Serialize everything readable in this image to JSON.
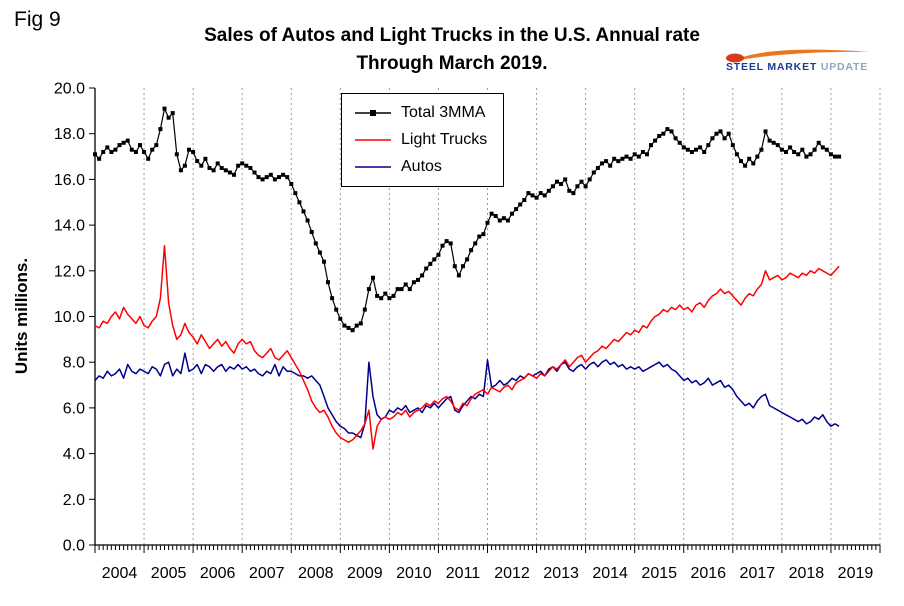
{
  "figure_label": "Fig 9",
  "logo": {
    "steel": "STEEL",
    "market": "MARKET",
    "update": "UPDATE",
    "swoosh_color": "#e87722",
    "swoosh_head_color": "#d63b1a",
    "steel_color": "#1b3e91",
    "market_color": "#1b3e91",
    "update_color": "#94a3c0"
  },
  "chart_data": {
    "type": "line",
    "title": "Sales of Autos and Light Trucks in the U.S. Annual rate",
    "subtitle": "Through March 2019.",
    "xlabel": "",
    "ylabel": "Units millions.",
    "ylim": [
      0,
      20
    ],
    "yticks": [
      0,
      2,
      4,
      6,
      8,
      10,
      12,
      14,
      16,
      18,
      20
    ],
    "x_start": "2004-01",
    "x_end": "2019-03",
    "x_frequency": "monthly",
    "year_labels": [
      "2004",
      "2005",
      "2006",
      "2007",
      "2008",
      "2009",
      "2010",
      "2011",
      "2012",
      "2013",
      "2014",
      "2015",
      "2016",
      "2017",
      "2018",
      "2019"
    ],
    "grid": "vertical-dashed",
    "grid_color": "#9a9a9a",
    "legend_position": "top-center-inside",
    "series": [
      {
        "name": "Total 3MMA",
        "color": "#000000",
        "marker": "square",
        "values": [
          17.1,
          16.9,
          17.2,
          17.4,
          17.2,
          17.3,
          17.5,
          17.6,
          17.7,
          17.3,
          17.2,
          17.5,
          17.2,
          16.9,
          17.3,
          17.5,
          18.2,
          19.1,
          18.7,
          18.9,
          17.1,
          16.4,
          16.6,
          17.3,
          17.2,
          16.8,
          16.6,
          16.9,
          16.5,
          16.4,
          16.7,
          16.5,
          16.4,
          16.3,
          16.2,
          16.6,
          16.7,
          16.6,
          16.5,
          16.3,
          16.1,
          16.0,
          16.1,
          16.2,
          16.0,
          16.1,
          16.2,
          16.1,
          15.8,
          15.4,
          15.0,
          14.6,
          14.2,
          13.7,
          13.2,
          12.8,
          12.4,
          11.5,
          10.8,
          10.3,
          9.9,
          9.6,
          9.5,
          9.4,
          9.6,
          9.7,
          10.3,
          11.2,
          11.7,
          10.9,
          10.8,
          11.0,
          10.8,
          10.9,
          11.2,
          11.2,
          11.4,
          11.2,
          11.5,
          11.6,
          11.8,
          12.1,
          12.3,
          12.5,
          12.7,
          13.1,
          13.3,
          13.2,
          12.2,
          11.8,
          12.2,
          12.5,
          12.9,
          13.2,
          13.5,
          13.6,
          14.1,
          14.5,
          14.4,
          14.2,
          14.3,
          14.2,
          14.5,
          14.7,
          14.9,
          15.1,
          15.4,
          15.3,
          15.2,
          15.4,
          15.3,
          15.5,
          15.7,
          15.9,
          15.8,
          16.0,
          15.5,
          15.4,
          15.7,
          15.9,
          15.7,
          16.0,
          16.3,
          16.5,
          16.7,
          16.8,
          16.6,
          16.9,
          16.8,
          16.9,
          17.0,
          16.9,
          17.1,
          17.0,
          17.2,
          17.1,
          17.5,
          17.7,
          17.9,
          18.0,
          18.2,
          18.1,
          17.8,
          17.6,
          17.4,
          17.3,
          17.2,
          17.3,
          17.4,
          17.2,
          17.5,
          17.8,
          18.0,
          18.1,
          17.8,
          18.0,
          17.5,
          17.1,
          16.8,
          16.6,
          16.9,
          16.7,
          17.0,
          17.3,
          18.1,
          17.7,
          17.6,
          17.5,
          17.3,
          17.2,
          17.4,
          17.2,
          17.1,
          17.3,
          17.0,
          17.1,
          17.3,
          17.6,
          17.4,
          17.3,
          17.1,
          17.0,
          17.0
        ]
      },
      {
        "name": "Light Trucks",
        "color": "#ff0000",
        "marker": "none",
        "values": [
          9.6,
          9.5,
          9.8,
          9.7,
          10.0,
          10.2,
          9.9,
          10.4,
          10.1,
          9.9,
          9.7,
          10.0,
          9.6,
          9.5,
          9.8,
          10.0,
          10.8,
          13.1,
          10.6,
          9.6,
          9.0,
          9.2,
          9.7,
          9.3,
          9.1,
          8.8,
          9.2,
          8.9,
          8.6,
          8.8,
          9.0,
          8.7,
          8.9,
          8.6,
          8.4,
          8.8,
          9.0,
          8.8,
          8.9,
          8.5,
          8.3,
          8.2,
          8.4,
          8.6,
          8.2,
          8.1,
          8.3,
          8.5,
          8.2,
          7.9,
          7.6,
          7.2,
          6.8,
          6.3,
          6.0,
          5.8,
          5.9,
          5.6,
          5.2,
          4.9,
          4.7,
          4.6,
          4.5,
          4.6,
          4.8,
          5.0,
          5.3,
          5.9,
          4.2,
          5.2,
          5.5,
          5.6,
          5.5,
          5.6,
          5.8,
          5.7,
          5.9,
          5.6,
          5.8,
          5.9,
          6.0,
          6.2,
          6.1,
          6.3,
          6.2,
          6.4,
          6.5,
          6.3,
          6.0,
          5.9,
          6.2,
          6.1,
          6.4,
          6.6,
          6.7,
          6.8,
          6.6,
          6.9,
          6.8,
          6.7,
          6.9,
          7.0,
          6.8,
          7.1,
          7.2,
          7.3,
          7.5,
          7.4,
          7.3,
          7.5,
          7.4,
          7.6,
          7.8,
          7.7,
          7.9,
          8.1,
          7.8,
          8.0,
          8.2,
          8.3,
          8.0,
          8.2,
          8.4,
          8.5,
          8.7,
          8.6,
          8.8,
          9.0,
          8.9,
          9.1,
          9.3,
          9.2,
          9.4,
          9.3,
          9.6,
          9.5,
          9.8,
          10.0,
          10.1,
          10.3,
          10.2,
          10.4,
          10.3,
          10.5,
          10.3,
          10.4,
          10.2,
          10.5,
          10.6,
          10.4,
          10.7,
          10.9,
          11.0,
          11.2,
          11.0,
          11.1,
          10.9,
          10.7,
          10.5,
          10.8,
          11.0,
          10.9,
          11.2,
          11.4,
          12.0,
          11.6,
          11.7,
          11.8,
          11.6,
          11.7,
          11.9,
          11.8,
          11.7,
          11.9,
          11.8,
          12.0,
          11.9,
          12.1,
          12.0,
          11.9,
          11.8,
          12.0,
          12.2
        ]
      },
      {
        "name": "Autos",
        "color": "#00008b",
        "marker": "none",
        "values": [
          7.2,
          7.4,
          7.3,
          7.6,
          7.4,
          7.5,
          7.7,
          7.3,
          7.9,
          7.6,
          7.5,
          7.7,
          7.6,
          7.5,
          7.8,
          7.7,
          7.4,
          7.9,
          8.0,
          7.4,
          7.7,
          7.5,
          8.4,
          7.6,
          7.7,
          7.9,
          7.5,
          7.9,
          7.8,
          7.6,
          7.8,
          7.9,
          7.6,
          7.8,
          7.7,
          7.9,
          7.7,
          7.8,
          7.6,
          7.7,
          7.5,
          7.4,
          7.6,
          7.5,
          7.9,
          7.4,
          7.8,
          7.6,
          7.6,
          7.5,
          7.4,
          7.4,
          7.3,
          7.4,
          7.2,
          7.0,
          6.5,
          6.0,
          5.7,
          5.4,
          5.2,
          5.1,
          4.9,
          4.9,
          4.8,
          4.7,
          5.3,
          8.0,
          6.5,
          5.7,
          5.5,
          5.6,
          5.9,
          5.8,
          6.0,
          5.9,
          6.1,
          5.8,
          5.9,
          6.0,
          5.8,
          6.1,
          6.0,
          6.2,
          6.0,
          6.2,
          6.4,
          6.5,
          5.9,
          5.8,
          6.1,
          6.3,
          6.5,
          6.4,
          6.6,
          6.5,
          8.1,
          6.9,
          7.0,
          7.2,
          7.0,
          7.1,
          7.3,
          7.2,
          7.4,
          7.3,
          7.5,
          7.4,
          7.5,
          7.6,
          7.4,
          7.7,
          7.8,
          7.6,
          7.9,
          8.0,
          7.7,
          7.6,
          7.8,
          7.9,
          7.7,
          7.9,
          8.0,
          7.8,
          8.0,
          8.1,
          7.9,
          8.0,
          7.8,
          7.9,
          7.7,
          7.8,
          7.7,
          7.8,
          7.6,
          7.7,
          7.8,
          7.9,
          8.0,
          7.8,
          7.9,
          7.7,
          7.6,
          7.4,
          7.2,
          7.3,
          7.1,
          7.2,
          7.0,
          7.1,
          7.3,
          7.0,
          7.1,
          7.2,
          6.9,
          7.0,
          6.8,
          6.5,
          6.3,
          6.1,
          6.2,
          6.0,
          6.3,
          6.5,
          6.6,
          6.1,
          6.0,
          5.9,
          5.8,
          5.7,
          5.6,
          5.5,
          5.4,
          5.5,
          5.3,
          5.4,
          5.6,
          5.5,
          5.7,
          5.4,
          5.2,
          5.3,
          5.2
        ]
      }
    ]
  }
}
